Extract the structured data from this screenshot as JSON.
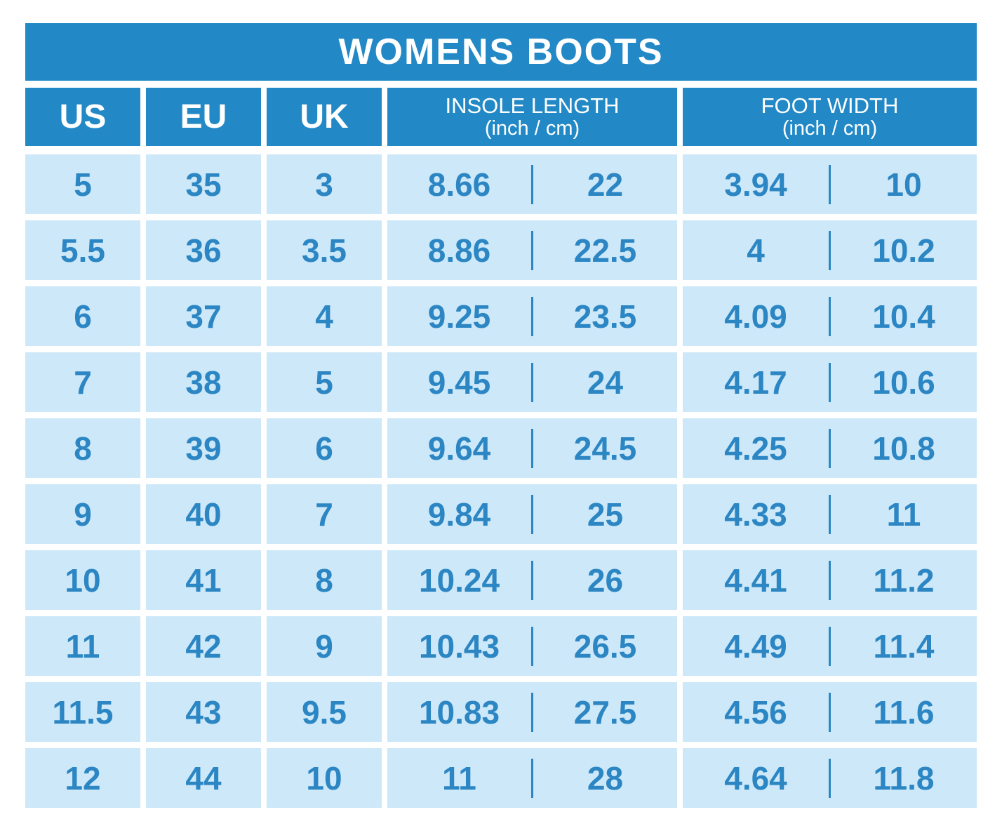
{
  "colors": {
    "header_bg": "#2289c6",
    "cell_bg": "#cde8f8",
    "text_blue": "#2b86c3"
  },
  "title": "WOMENS BOOTS",
  "header": {
    "us": "US",
    "eu": "EU",
    "uk": "UK",
    "insole_label": "INSOLE LENGTH",
    "insole_unit": "(inch / cm)",
    "foot_label": "FOOT WIDTH",
    "foot_unit": "(inch / cm)"
  },
  "rows": [
    {
      "us": "5",
      "eu": "35",
      "uk": "3",
      "insole_in": "8.66",
      "insole_cm": "22",
      "foot_in": "3.94",
      "foot_cm": "10"
    },
    {
      "us": "5.5",
      "eu": "36",
      "uk": "3.5",
      "insole_in": "8.86",
      "insole_cm": "22.5",
      "foot_in": "4",
      "foot_cm": "10.2"
    },
    {
      "us": "6",
      "eu": "37",
      "uk": "4",
      "insole_in": "9.25",
      "insole_cm": "23.5",
      "foot_in": "4.09",
      "foot_cm": "10.4"
    },
    {
      "us": "7",
      "eu": "38",
      "uk": "5",
      "insole_in": "9.45",
      "insole_cm": "24",
      "foot_in": "4.17",
      "foot_cm": "10.6"
    },
    {
      "us": "8",
      "eu": "39",
      "uk": "6",
      "insole_in": "9.64",
      "insole_cm": "24.5",
      "foot_in": "4.25",
      "foot_cm": "10.8"
    },
    {
      "us": "9",
      "eu": "40",
      "uk": "7",
      "insole_in": "9.84",
      "insole_cm": "25",
      "foot_in": "4.33",
      "foot_cm": "11"
    },
    {
      "us": "10",
      "eu": "41",
      "uk": "8",
      "insole_in": "10.24",
      "insole_cm": "26",
      "foot_in": "4.41",
      "foot_cm": "11.2"
    },
    {
      "us": "11",
      "eu": "42",
      "uk": "9",
      "insole_in": "10.43",
      "insole_cm": "26.5",
      "foot_in": "4.49",
      "foot_cm": "11.4"
    },
    {
      "us": "11.5",
      "eu": "43",
      "uk": "9.5",
      "insole_in": "10.83",
      "insole_cm": "27.5",
      "foot_in": "4.56",
      "foot_cm": "11.6"
    },
    {
      "us": "12",
      "eu": "44",
      "uk": "10",
      "insole_in": "11",
      "insole_cm": "28",
      "foot_in": "4.64",
      "foot_cm": "11.8"
    }
  ],
  "chart_data": {
    "type": "table",
    "title": "WOMENS BOOTS",
    "columns": [
      "US",
      "EU",
      "UK",
      "INSOLE LENGTH (inch)",
      "INSOLE LENGTH (cm)",
      "FOOT WIDTH (inch)",
      "FOOT WIDTH (cm)"
    ],
    "rows": [
      [
        "5",
        "35",
        "3",
        "8.66",
        "22",
        "3.94",
        "10"
      ],
      [
        "5.5",
        "36",
        "3.5",
        "8.86",
        "22.5",
        "4",
        "10.2"
      ],
      [
        "6",
        "37",
        "4",
        "9.25",
        "23.5",
        "4.09",
        "10.4"
      ],
      [
        "7",
        "38",
        "5",
        "9.45",
        "24",
        "4.17",
        "10.6"
      ],
      [
        "8",
        "39",
        "6",
        "9.64",
        "24.5",
        "4.25",
        "10.8"
      ],
      [
        "9",
        "40",
        "7",
        "9.84",
        "25",
        "4.33",
        "11"
      ],
      [
        "10",
        "41",
        "8",
        "10.24",
        "26",
        "4.41",
        "11.2"
      ],
      [
        "11",
        "42",
        "9",
        "10.43",
        "26.5",
        "4.49",
        "11.4"
      ],
      [
        "11.5",
        "43",
        "9.5",
        "10.83",
        "27.5",
        "4.56",
        "11.6"
      ],
      [
        "12",
        "44",
        "10",
        "11",
        "28",
        "4.64",
        "11.8"
      ]
    ]
  }
}
